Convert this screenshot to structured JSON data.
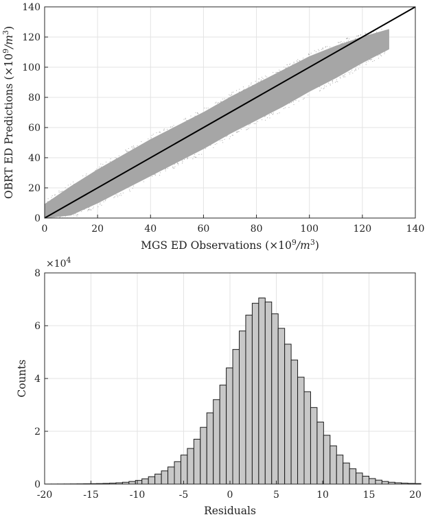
{
  "chart_data": [
    {
      "type": "scatter",
      "xlabel": "MGS ED Observations",
      "xlabel_unit_pre": "(×10",
      "xlabel_unit_exp": "9",
      "xlabel_unit_mid": "/m",
      "xlabel_unit_exp2": "3",
      "xlabel_unit_post": ")",
      "ylabel": "OBRT ED Predictions",
      "ylabel_unit_pre": "(×10",
      "ylabel_unit_exp": "9",
      "ylabel_unit_mid": "/m",
      "ylabel_unit_exp2": "3",
      "ylabel_unit_post": ")",
      "xlim": [
        0,
        140
      ],
      "ylim": [
        0,
        140
      ],
      "xticks": [
        0,
        20,
        40,
        60,
        80,
        100,
        120,
        140
      ],
      "yticks": [
        0,
        20,
        40,
        60,
        80,
        100,
        120,
        140
      ],
      "grid": true,
      "point_color": "#a6a6a6",
      "reference_line": {
        "x": [
          0,
          140
        ],
        "y": [
          0,
          140
        ],
        "color": "#000000"
      },
      "point_cloud_envelope": {
        "x": [
          0,
          10,
          20,
          30,
          40,
          50,
          60,
          70,
          80,
          90,
          100,
          110,
          120,
          130
        ],
        "y_low": [
          0,
          2,
          10,
          19,
          28,
          37,
          46,
          56,
          65,
          74,
          84,
          93,
          103,
          112
        ],
        "y_high": [
          9,
          21,
          32,
          42,
          52,
          61,
          70,
          80,
          89,
          98,
          107,
          114,
          120,
          125
        ]
      }
    },
    {
      "type": "bar",
      "xlabel": "Residuals",
      "ylabel": "Counts",
      "y_multiplier_base": "×10",
      "y_multiplier_exp": "4",
      "xlim": [
        -20,
        20
      ],
      "ylim": [
        0,
        8
      ],
      "xticks": [
        -20,
        -15,
        -10,
        -5,
        0,
        5,
        10,
        15,
        20
      ],
      "yticks": [
        0,
        2,
        4,
        6,
        8
      ],
      "grid": true,
      "bar_color": "#c8c8c8",
      "bin_edges_start": -20,
      "bin_width": 0.7,
      "values": [
        0.003,
        0.004,
        0.005,
        0.006,
        0.008,
        0.01,
        0.013,
        0.016,
        0.02,
        0.026,
        0.035,
        0.05,
        0.07,
        0.1,
        0.14,
        0.2,
        0.28,
        0.38,
        0.5,
        0.65,
        0.85,
        1.1,
        1.35,
        1.7,
        2.15,
        2.7,
        3.2,
        3.75,
        4.4,
        5.1,
        5.8,
        6.4,
        6.85,
        7.05,
        6.9,
        6.45,
        5.9,
        5.3,
        4.7,
        4.05,
        3.5,
        2.9,
        2.35,
        1.85,
        1.45,
        1.1,
        0.8,
        0.58,
        0.42,
        0.3,
        0.21,
        0.15,
        0.1,
        0.07,
        0.05,
        0.035,
        0.025,
        0.02
      ]
    }
  ]
}
